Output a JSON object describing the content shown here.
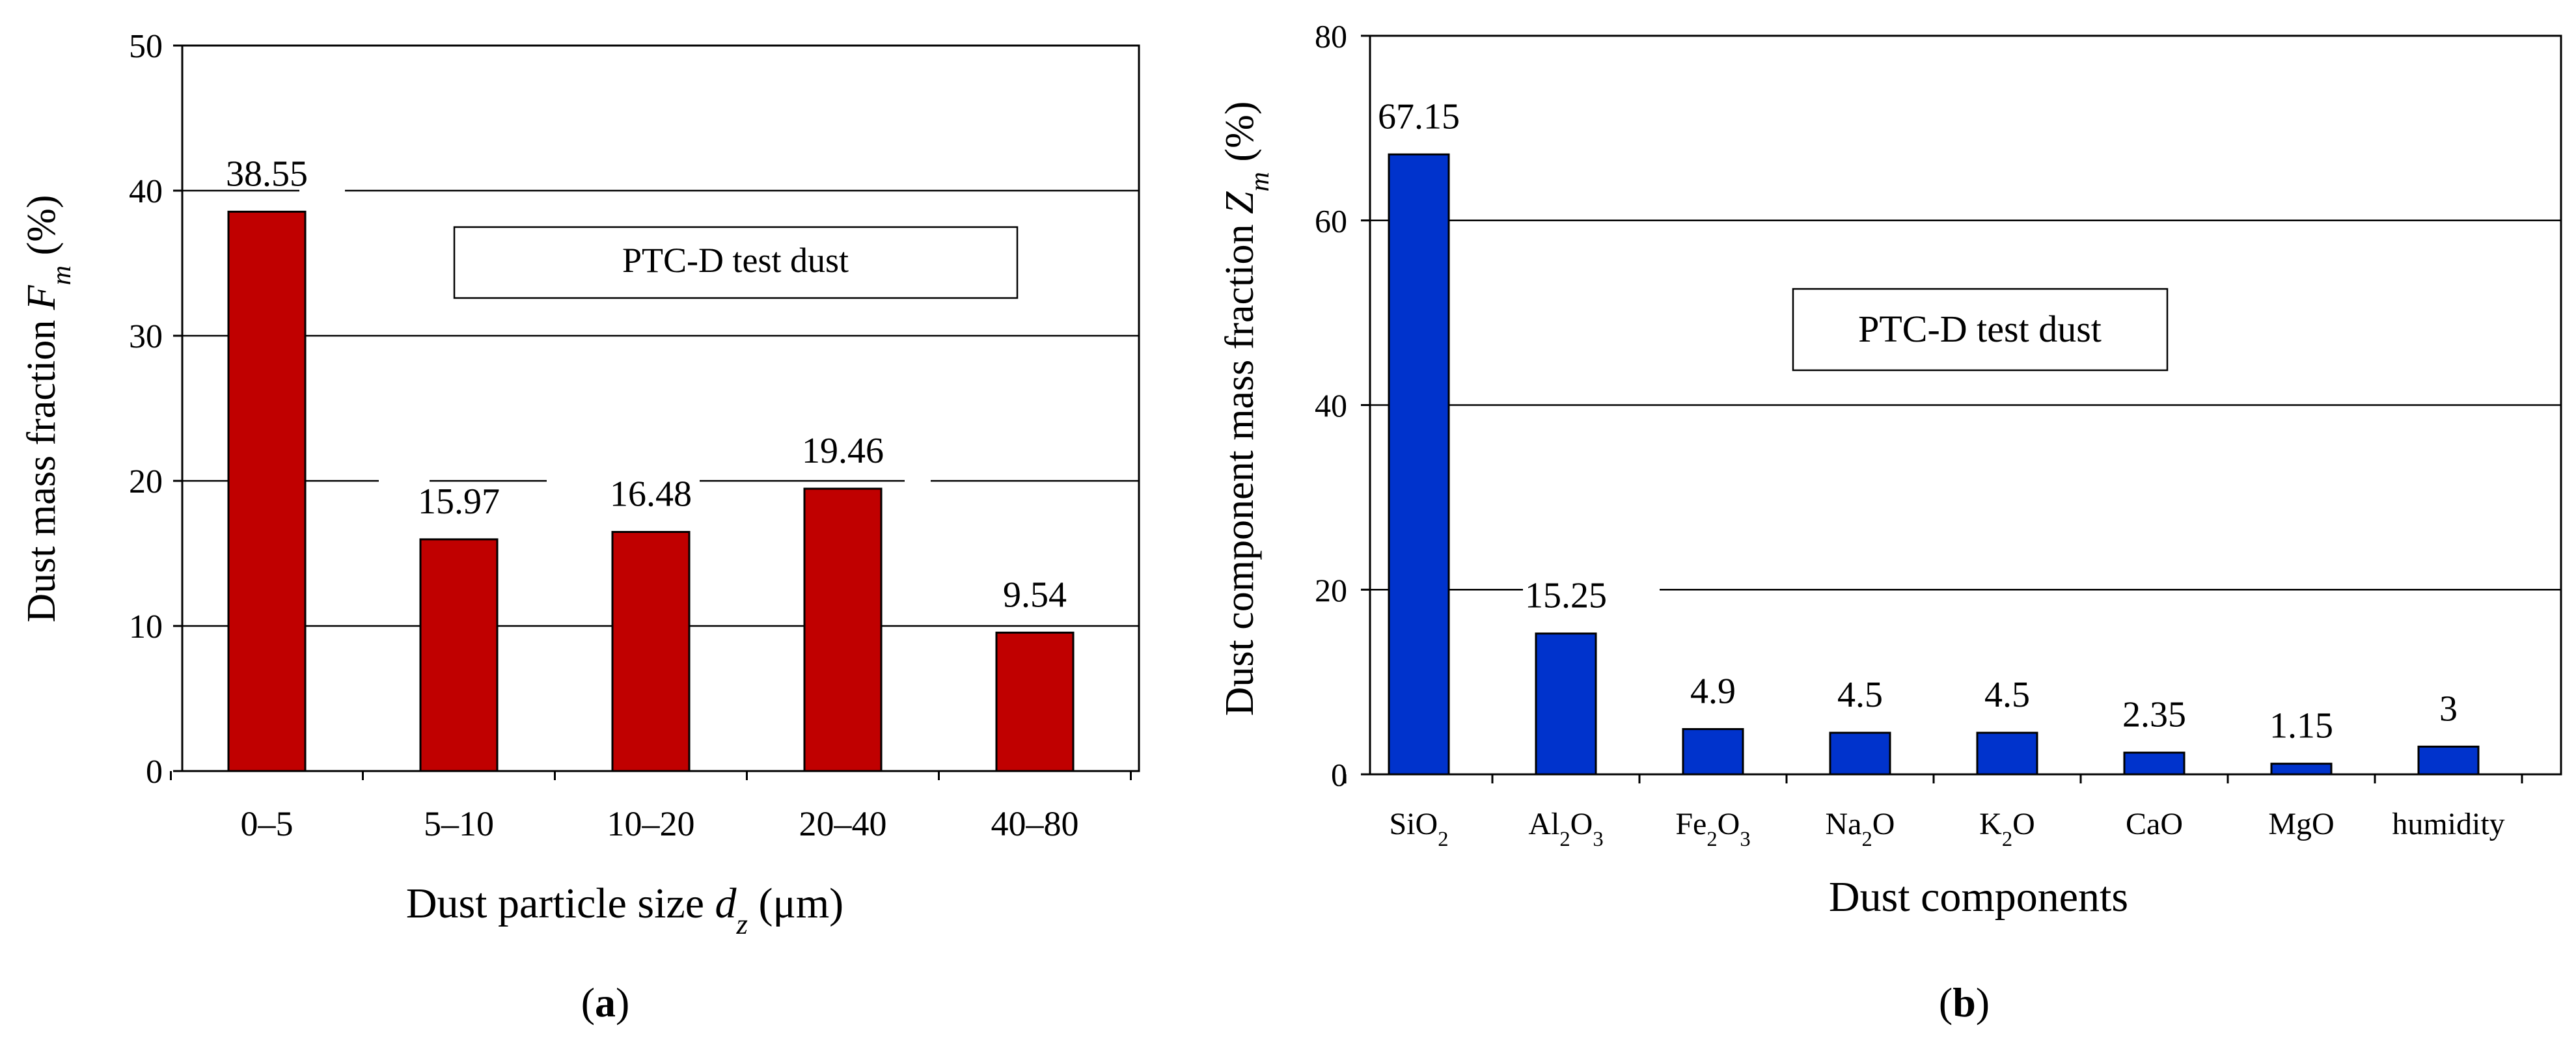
{
  "colors": {
    "bar_a": "#C00000",
    "bar_b": "#0033CC",
    "axis": "#000000",
    "grid": "#000000",
    "background": "#FFFFFF"
  },
  "chart_data": [
    {
      "type": "bar",
      "panel_label": "(a)",
      "panel_letter": "a",
      "annotation": "PTC-D test dust",
      "categories": [
        "0–5",
        "5–10",
        "10–20",
        "20–40",
        "40–80"
      ],
      "values": [
        38.55,
        15.97,
        16.48,
        19.46,
        9.54
      ],
      "value_labels": [
        "38.55",
        "15.97",
        "16.48",
        "19.46",
        "9.54"
      ],
      "ylim": [
        0,
        50
      ],
      "yticks": [
        0,
        10,
        20,
        30,
        40,
        50
      ],
      "grid": true,
      "xlabel": {
        "prefix": "Dust particle size ",
        "symbol": "d",
        "subscript": "z",
        "suffix": " (μm)"
      },
      "ylabel": {
        "prefix": "Dust mass fraction ",
        "symbol": "F",
        "subscript": "m",
        "suffix": " (%)"
      }
    },
    {
      "type": "bar",
      "panel_label": "(b)",
      "panel_letter": "b",
      "annotation": "PTC-D test dust",
      "categories": [
        [
          {
            "t": "SiO"
          },
          {
            "t": "2",
            "sub": true
          }
        ],
        [
          {
            "t": "Al"
          },
          {
            "t": "2",
            "sub": true
          },
          {
            "t": "O"
          },
          {
            "t": "3",
            "sub": true
          }
        ],
        [
          {
            "t": "Fe"
          },
          {
            "t": "2",
            "sub": true
          },
          {
            "t": "O"
          },
          {
            "t": "3",
            "sub": true
          }
        ],
        [
          {
            "t": "Na"
          },
          {
            "t": "2",
            "sub": true
          },
          {
            "t": "O"
          }
        ],
        [
          {
            "t": "K"
          },
          {
            "t": "2",
            "sub": true
          },
          {
            "t": "O"
          }
        ],
        [
          {
            "t": "CaO"
          }
        ],
        [
          {
            "t": "MgO"
          }
        ],
        [
          {
            "t": "humidity"
          }
        ]
      ],
      "values": [
        67.15,
        15.25,
        4.9,
        4.5,
        4.5,
        2.35,
        1.15,
        3
      ],
      "value_labels": [
        "67.15",
        "15.25",
        "4.9",
        "4.5",
        "4.5",
        "2.35",
        "1.15",
        "3"
      ],
      "ylim": [
        0,
        80
      ],
      "yticks": [
        0,
        20,
        40,
        60,
        80
      ],
      "grid": true,
      "xlabel": {
        "prefix": "Dust components",
        "symbol": "",
        "subscript": "",
        "suffix": ""
      },
      "ylabel": {
        "prefix": "Dust component mass fraction ",
        "symbol": "Z",
        "subscript": "m",
        "suffix": " (%)"
      }
    }
  ]
}
